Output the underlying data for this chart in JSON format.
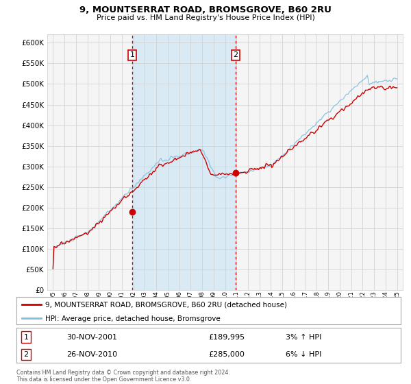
{
  "title": "9, MOUNTSERRAT ROAD, BROMSGROVE, B60 2RU",
  "subtitle": "Price paid vs. HM Land Registry's House Price Index (HPI)",
  "legend_line1": "9, MOUNTSERRAT ROAD, BROMSGROVE, B60 2RU (detached house)",
  "legend_line2": "HPI: Average price, detached house, Bromsgrove",
  "sale1_date": 2001.917,
  "sale1_price": 189995,
  "sale1_label": "1",
  "sale1_text": "30-NOV-2001",
  "sale1_amount": "£189,995",
  "sale1_hpi": "3% ↑ HPI",
  "sale2_date": 2010.917,
  "sale2_price": 285000,
  "sale2_label": "2",
  "sale2_text": "26-NOV-2010",
  "sale2_amount": "£285,000",
  "sale2_hpi": "6% ↓ HPI",
  "hpi_color": "#7fbfdf",
  "price_color": "#cc0000",
  "shade_color": "#daeaf5",
  "vline_color": "#cc0000",
  "grid_color": "#cccccc",
  "bg_color": "#f5f5f5",
  "ylim_min": 0,
  "ylim_max": 620000,
  "xlim_min": 1994.5,
  "xlim_max": 2025.5,
  "footer1": "Contains HM Land Registry data © Crown copyright and database right 2024.",
  "footer2": "This data is licensed under the Open Government Licence v3.0."
}
